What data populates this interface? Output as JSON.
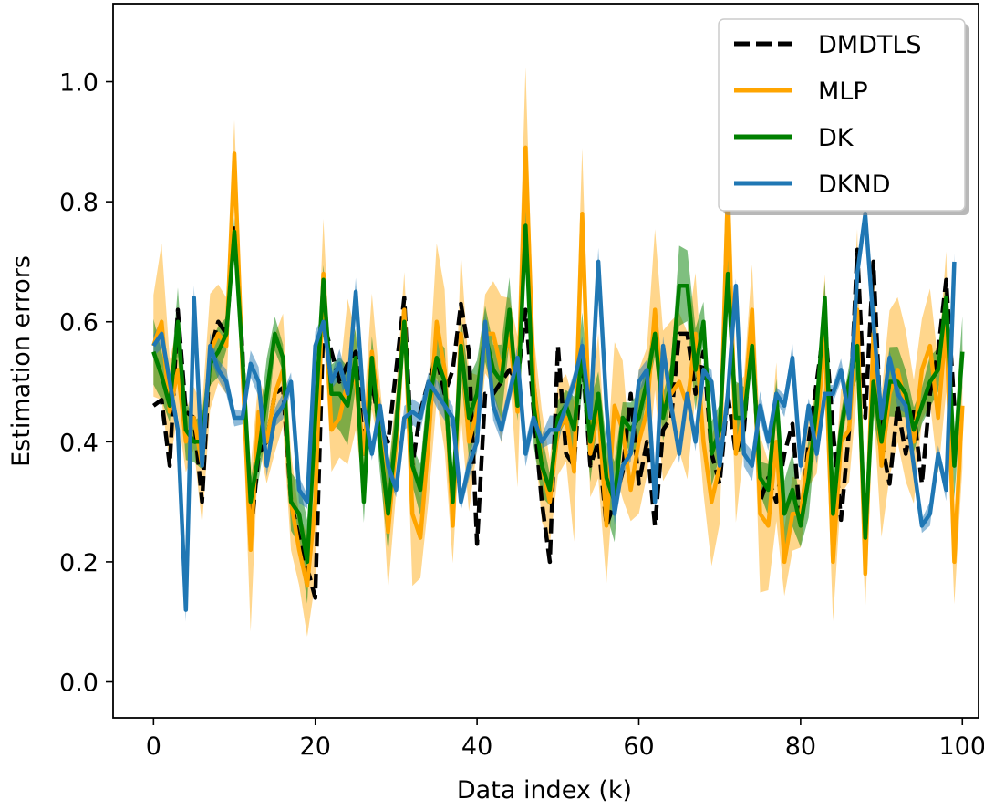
{
  "chart_data": {
    "type": "line",
    "title": "",
    "xlabel": "Data index (k)",
    "ylabel": "Estimation errors",
    "xlim": [
      -5,
      102
    ],
    "ylim": [
      -0.06,
      1.13
    ],
    "xticks": [
      0,
      20,
      40,
      60,
      80,
      100
    ],
    "yticks": [
      0.0,
      0.2,
      0.4,
      0.6,
      0.8,
      1.0
    ],
    "xtick_labels": [
      "0",
      "20",
      "40",
      "60",
      "80",
      "100"
    ],
    "ytick_labels": [
      "0.0",
      "0.2",
      "0.4",
      "0.6",
      "0.8",
      "1.0"
    ],
    "legend_position": "top-right",
    "series": [
      {
        "name": "DMDTLS",
        "color": "#000000",
        "style": "dashed",
        "values": [
          0.46,
          0.47,
          0.36,
          0.62,
          0.45,
          0.44,
          0.3,
          0.55,
          0.6,
          0.58,
          0.76,
          0.55,
          0.24,
          0.38,
          0.4,
          0.48,
          0.49,
          0.3,
          0.24,
          0.19,
          0.14,
          0.6,
          0.55,
          0.5,
          0.53,
          0.55,
          0.38,
          0.5,
          0.42,
          0.4,
          0.52,
          0.64,
          0.36,
          0.45,
          0.5,
          0.54,
          0.48,
          0.52,
          0.63,
          0.55,
          0.23,
          0.48,
          0.48,
          0.5,
          0.52,
          0.5,
          0.62,
          0.45,
          0.3,
          0.2,
          0.56,
          0.38,
          0.36,
          0.55,
          0.36,
          0.4,
          0.26,
          0.3,
          0.35,
          0.48,
          0.33,
          0.4,
          0.26,
          0.42,
          0.44,
          0.58,
          0.58,
          0.48,
          0.55,
          0.38,
          0.33,
          0.48,
          0.38,
          0.42,
          0.6,
          0.3,
          0.34,
          0.3,
          0.38,
          0.43,
          0.26,
          0.4,
          0.5,
          0.6,
          0.42,
          0.27,
          0.42,
          0.72,
          0.44,
          0.7,
          0.4,
          0.33,
          0.46,
          0.38,
          0.45,
          0.33,
          0.48,
          0.55,
          0.67,
          0.46
        ]
      },
      {
        "name": "MLP",
        "color": "#ffa500",
        "style": "solid",
        "band": true,
        "values": [
          0.56,
          0.6,
          0.45,
          0.52,
          0.4,
          0.44,
          0.36,
          0.55,
          0.58,
          0.56,
          0.88,
          0.52,
          0.22,
          0.45,
          0.4,
          0.48,
          0.52,
          0.3,
          0.22,
          0.16,
          0.3,
          0.68,
          0.42,
          0.44,
          0.5,
          0.5,
          0.38,
          0.55,
          0.44,
          0.25,
          0.4,
          0.62,
          0.28,
          0.24,
          0.4,
          0.6,
          0.52,
          0.26,
          0.58,
          0.4,
          0.45,
          0.58,
          0.58,
          0.52,
          0.58,
          0.45,
          0.89,
          0.5,
          0.36,
          0.3,
          0.42,
          0.44,
          0.35,
          0.78,
          0.38,
          0.46,
          0.26,
          0.46,
          0.42,
          0.32,
          0.4,
          0.45,
          0.62,
          0.46,
          0.48,
          0.5,
          0.46,
          0.58,
          0.4,
          0.3,
          0.36,
          0.82,
          0.38,
          0.45,
          0.62,
          0.28,
          0.26,
          0.4,
          0.2,
          0.28,
          0.28,
          0.38,
          0.42,
          0.58,
          0.2,
          0.4,
          0.42,
          0.62,
          0.18,
          0.58,
          0.36,
          0.48,
          0.52,
          0.46,
          0.4,
          0.52,
          0.56,
          0.44,
          0.6,
          0.2,
          0.46
        ]
      },
      {
        "name": "DK",
        "color": "#008000",
        "style": "solid",
        "band": true,
        "values": [
          0.55,
          0.51,
          0.46,
          0.6,
          0.42,
          0.4,
          0.4,
          0.53,
          0.55,
          0.58,
          0.75,
          0.54,
          0.3,
          0.38,
          0.48,
          0.58,
          0.54,
          0.3,
          0.28,
          0.2,
          0.44,
          0.67,
          0.48,
          0.48,
          0.46,
          0.54,
          0.3,
          0.54,
          0.4,
          0.28,
          0.42,
          0.6,
          0.36,
          0.32,
          0.46,
          0.54,
          0.5,
          0.3,
          0.56,
          0.44,
          0.48,
          0.58,
          0.52,
          0.5,
          0.62,
          0.46,
          0.76,
          0.46,
          0.36,
          0.32,
          0.44,
          0.46,
          0.42,
          0.55,
          0.4,
          0.48,
          0.34,
          0.3,
          0.44,
          0.42,
          0.44,
          0.5,
          0.58,
          0.44,
          0.5,
          0.66,
          0.66,
          0.52,
          0.6,
          0.38,
          0.42,
          0.68,
          0.44,
          0.44,
          0.56,
          0.34,
          0.32,
          0.48,
          0.28,
          0.32,
          0.26,
          0.34,
          0.46,
          0.64,
          0.28,
          0.42,
          0.5,
          0.56,
          0.24,
          0.5,
          0.4,
          0.5,
          0.5,
          0.48,
          0.42,
          0.46,
          0.5,
          0.52,
          0.64,
          0.36,
          0.55
        ]
      },
      {
        "name": "DKND",
        "color": "#1f77b4",
        "style": "solid",
        "band": true,
        "values": [
          0.56,
          0.58,
          0.5,
          0.42,
          0.12,
          0.64,
          0.36,
          0.56,
          0.52,
          0.5,
          0.44,
          0.44,
          0.53,
          0.5,
          0.36,
          0.44,
          0.46,
          0.5,
          0.32,
          0.3,
          0.56,
          0.6,
          0.5,
          0.53,
          0.48,
          0.65,
          0.46,
          0.38,
          0.46,
          0.36,
          0.32,
          0.44,
          0.45,
          0.44,
          0.5,
          0.48,
          0.46,
          0.44,
          0.3,
          0.36,
          0.4,
          0.6,
          0.46,
          0.42,
          0.48,
          0.54,
          0.38,
          0.44,
          0.4,
          0.42,
          0.42,
          0.46,
          0.5,
          0.56,
          0.44,
          0.7,
          0.46,
          0.28,
          0.36,
          0.38,
          0.5,
          0.52,
          0.3,
          0.56,
          0.46,
          0.38,
          0.48,
          0.4,
          0.52,
          0.5,
          0.36,
          0.48,
          0.66,
          0.38,
          0.36,
          0.46,
          0.4,
          0.48,
          0.46,
          0.54,
          0.36,
          0.46,
          0.38,
          0.48,
          0.48,
          0.52,
          0.44,
          0.68,
          0.78,
          0.6,
          0.44,
          0.54,
          0.48,
          0.46,
          0.36,
          0.26,
          0.28,
          0.38,
          0.32,
          0.7
        ]
      }
    ]
  }
}
